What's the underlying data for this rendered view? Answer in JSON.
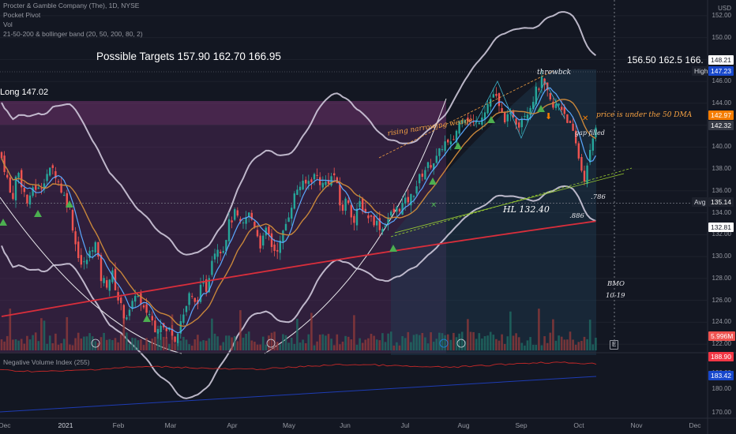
{
  "header": {
    "symbol": "Procter & Gamble Company (The), 1D, NYSE",
    "indicators": [
      "Pocket Pivot",
      "Vol",
      "21-50-200 & bollinger band (20, 50, 200, 80, 2)"
    ],
    "currency": "USD"
  },
  "annotations": {
    "targets": "Possible Targets  157.90  162.70  166.95",
    "targets_right": "156.50  162.5  166.",
    "long": "Long 147.02",
    "rising_wedge": "rising narrowing wedge",
    "throwback": "throwbck",
    "under_50dma": "price is under the 50 DMA",
    "gap_filled": "gap filled",
    "hl": "HL 132.40",
    "fib_786": ".786",
    "fib_886": ".886",
    "bmo": "BMO",
    "bmo_date": "10-19",
    "earnings": "E"
  },
  "price_axis": {
    "ticks": [
      "152.00",
      "150.00",
      "148.00",
      "146.00",
      "144.00",
      "142.00",
      "140.00",
      "138.00",
      "136.00",
      "134.00",
      "132.00",
      "130.00",
      "128.00",
      "126.00",
      "124.00",
      "122.00"
    ],
    "tags": [
      {
        "text": "148.21",
        "bg": "#ffffff",
        "fg": "#131722"
      },
      {
        "text": "High",
        "bg": "#1e222d",
        "fg": "#d1d4dc"
      },
      {
        "text": "147.23",
        "bg": "#1848cc",
        "fg": "#ffffff"
      },
      {
        "text": "142.97",
        "bg": "#f57c00",
        "fg": "#ffffff"
      },
      {
        "text": "142.32",
        "bg": "#363a45",
        "fg": "#ffffff"
      },
      {
        "text": "Avg",
        "bg": "#1e222d",
        "fg": "#d1d4dc"
      },
      {
        "text": "135.14",
        "bg": "#1e222d",
        "fg": "#ffffff"
      },
      {
        "text": "132.81",
        "bg": "#ffffff",
        "fg": "#131722"
      },
      {
        "text": "5.996M",
        "bg": "#ef5350",
        "fg": "#ffffff"
      }
    ]
  },
  "nvi": {
    "title": "Negative Volume Index (255)",
    "ticks": [
      "190.00",
      "180.00",
      "170.00"
    ],
    "tags": [
      {
        "text": "188.90",
        "bg": "#f23645",
        "fg": "#ffffff"
      },
      {
        "text": "183.42",
        "bg": "#1848cc",
        "fg": "#ffffff"
      }
    ]
  },
  "time_axis": [
    "Dec",
    "2021",
    "Feb",
    "Mar",
    "Apr",
    "May",
    "Jun",
    "Jul",
    "Aug",
    "Sep",
    "Oct",
    "Nov",
    "Dec"
  ],
  "chart_data": {
    "type": "line",
    "title": "Procter & Gamble Company (The), 1D, NYSE",
    "months": [
      "Dec",
      "2021",
      "Feb",
      "Mar",
      "Apr",
      "May",
      "Jun",
      "Jul",
      "Aug",
      "Sep",
      "Oct",
      "Nov",
      "Dec"
    ],
    "y_range": [
      121.5,
      153
    ],
    "price_path": [
      [
        0,
        139.5
      ],
      [
        8,
        137.5
      ],
      [
        15,
        135
      ],
      [
        22,
        138
      ],
      [
        30,
        136
      ],
      [
        36,
        134.5
      ],
      [
        42,
        136.5
      ],
      [
        50,
        136
      ],
      [
        58,
        137.5
      ],
      [
        68,
        138
      ],
      [
        78,
        136
      ],
      [
        88,
        134.5
      ],
      [
        96,
        131
      ],
      [
        104,
        129
      ],
      [
        112,
        130
      ],
      [
        120,
        131.5
      ],
      [
        128,
        128
      ],
      [
        135,
        127.5
      ],
      [
        142,
        128.5
      ],
      [
        150,
        126
      ],
      [
        158,
        124.5
      ],
      [
        166,
        125
      ],
      [
        172,
        127
      ],
      [
        180,
        125
      ],
      [
        188,
        125
      ],
      [
        196,
        123.5
      ],
      [
        204,
        124
      ],
      [
        210,
        123
      ],
      [
        216,
        123.5
      ],
      [
        222,
        122.5
      ],
      [
        228,
        124
      ],
      [
        234,
        125
      ],
      [
        240,
        126.5
      ],
      [
        248,
        125.5
      ],
      [
        256,
        127.5
      ],
      [
        262,
        127
      ],
      [
        268,
        130
      ],
      [
        276,
        131
      ],
      [
        282,
        130.5
      ],
      [
        290,
        133
      ],
      [
        298,
        134
      ],
      [
        306,
        132.5
      ],
      [
        314,
        134
      ],
      [
        322,
        133
      ],
      [
        330,
        131
      ],
      [
        338,
        132.5
      ],
      [
        346,
        130.5
      ],
      [
        354,
        131
      ],
      [
        362,
        133
      ],
      [
        370,
        135
      ],
      [
        378,
        136.5
      ],
      [
        386,
        136.5
      ],
      [
        392,
        137
      ],
      [
        400,
        137.5
      ],
      [
        408,
        136.5
      ],
      [
        416,
        137
      ],
      [
        424,
        137.5
      ],
      [
        432,
        134
      ],
      [
        440,
        135.5
      ],
      [
        448,
        133
      ],
      [
        456,
        135
      ],
      [
        462,
        134
      ],
      [
        470,
        133.5
      ],
      [
        478,
        133
      ],
      [
        484,
        132.5
      ],
      [
        490,
        133.5
      ],
      [
        498,
        134
      ],
      [
        506,
        134.5
      ],
      [
        514,
        135
      ],
      [
        522,
        135.5
      ],
      [
        530,
        137
      ],
      [
        538,
        138
      ],
      [
        546,
        138.5
      ],
      [
        554,
        139
      ],
      [
        562,
        140.5
      ],
      [
        570,
        140
      ],
      [
        578,
        141.5
      ],
      [
        586,
        143
      ],
      [
        594,
        142.5
      ],
      [
        602,
        142
      ],
      [
        610,
        143
      ],
      [
        618,
        144
      ],
      [
        626,
        145
      ],
      [
        634,
        143
      ],
      [
        642,
        142.5
      ],
      [
        650,
        143
      ],
      [
        656,
        142
      ],
      [
        662,
        143
      ],
      [
        670,
        143.5
      ],
      [
        678,
        145
      ],
      [
        686,
        146
      ],
      [
        692,
        145
      ],
      [
        700,
        143.5
      ],
      [
        708,
        144
      ],
      [
        716,
        143
      ],
      [
        724,
        141.5
      ],
      [
        730,
        140
      ],
      [
        736,
        138
      ],
      [
        741,
        137
      ],
      [
        746,
        139
      ],
      [
        750,
        140.5
      ],
      [
        755,
        142.3
      ]
    ],
    "series": [
      {
        "name": "21 EMA",
        "color": "#5aa8ff"
      },
      {
        "name": "50 DMA",
        "color": "#c8863a"
      },
      {
        "name": "200 DMA",
        "color": "#d92e3b"
      },
      {
        "name": "Bollinger band",
        "color": "#d8d2e4"
      }
    ],
    "levels": [
      {
        "label": "Long 147.02",
        "value": 147.02
      },
      {
        "label": "Avg",
        "value": 135.14
      },
      {
        "label": "High",
        "value": 147.23
      }
    ],
    "nvi_series": [
      {
        "name": "Negative Volume Index (255)",
        "last": 188.9
      },
      {
        "name": "signal",
        "last": 183.42
      }
    ]
  }
}
